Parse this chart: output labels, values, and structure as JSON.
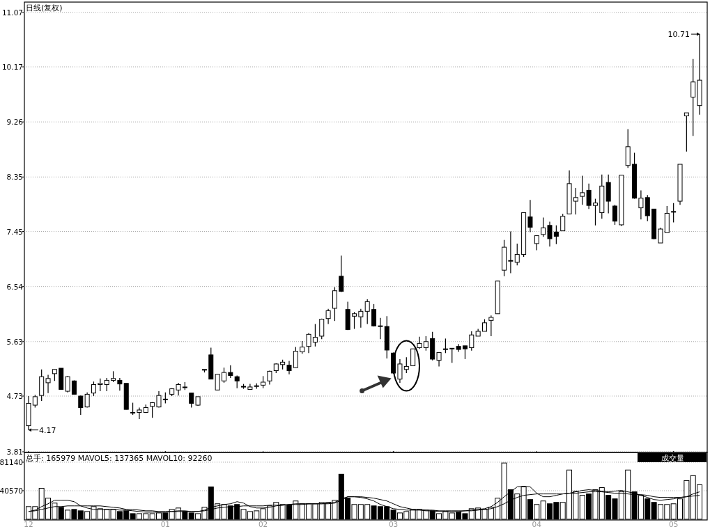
{
  "chart_data": [
    {
      "type": "candlestick",
      "title": "日线(复权)",
      "categories": [
        "12",
        null,
        null,
        null,
        null,
        null,
        null,
        null,
        null,
        null,
        null,
        null,
        null,
        null,
        null,
        null,
        null,
        null,
        null,
        null,
        null,
        "01",
        null,
        null,
        null,
        null,
        null,
        null,
        null,
        null,
        null,
        null,
        null,
        null,
        null,
        null,
        "02",
        null,
        null,
        null,
        null,
        null,
        null,
        null,
        null,
        null,
        null,
        null,
        null,
        null,
        null,
        null,
        null,
        null,
        null,
        null,
        "03",
        null,
        null,
        null,
        null,
        null,
        null,
        null,
        null,
        null,
        null,
        null,
        null,
        null,
        null,
        null,
        null,
        null,
        null,
        null,
        null,
        null,
        "04",
        null,
        null,
        null,
        null,
        null,
        null,
        null,
        null,
        null,
        null,
        null,
        null,
        null,
        null,
        null,
        null,
        null,
        null,
        null,
        null,
        "05",
        null,
        null,
        null,
        null
      ],
      "ohlc": [
        [
          4.24,
          4.73,
          4.17,
          4.61
        ],
        [
          4.58,
          4.75,
          4.54,
          4.72
        ],
        [
          4.74,
          5.17,
          4.65,
          5.05
        ],
        [
          4.95,
          5.08,
          4.78,
          5.02
        ],
        [
          5.1,
          5.17,
          4.98,
          5.17
        ],
        [
          5.19,
          5.19,
          4.84,
          4.84
        ],
        [
          4.81,
          5.06,
          4.79,
          5.05
        ],
        [
          4.98,
          4.99,
          4.76,
          4.76
        ],
        [
          4.73,
          4.74,
          4.42,
          4.54
        ],
        [
          4.55,
          4.79,
          4.54,
          4.76
        ],
        [
          4.78,
          4.97,
          4.73,
          4.92
        ],
        [
          4.92,
          5.02,
          4.81,
          4.94
        ],
        [
          4.92,
          5.03,
          4.81,
          4.99
        ],
        [
          4.99,
          5.14,
          4.96,
          5.02
        ],
        [
          4.99,
          5.03,
          4.82,
          4.93
        ],
        [
          4.94,
          4.94,
          4.51,
          4.51
        ],
        [
          4.46,
          4.62,
          4.42,
          4.46
        ],
        [
          4.46,
          4.54,
          4.35,
          4.5
        ],
        [
          4.46,
          4.59,
          4.45,
          4.54
        ],
        [
          4.56,
          4.63,
          4.37,
          4.62
        ],
        [
          4.55,
          4.81,
          4.54,
          4.74
        ],
        [
          4.68,
          4.79,
          4.61,
          4.68
        ],
        [
          4.76,
          4.86,
          4.73,
          4.85
        ],
        [
          4.83,
          4.95,
          4.74,
          4.92
        ],
        [
          4.88,
          4.96,
          4.83,
          4.88
        ],
        [
          4.78,
          4.78,
          4.54,
          4.61
        ],
        [
          4.58,
          4.72,
          4.57,
          4.72
        ],
        [
          5.17,
          5.17,
          5.12,
          5.17
        ],
        [
          5.41,
          5.53,
          5.01,
          5.01
        ],
        [
          4.83,
          5.09,
          4.83,
          5.09
        ],
        [
          4.98,
          5.2,
          4.95,
          5.12
        ],
        [
          5.12,
          5.24,
          5.03,
          5.07
        ],
        [
          5.05,
          5.07,
          4.86,
          4.98
        ],
        [
          4.89,
          4.93,
          4.85,
          4.89
        ],
        [
          4.84,
          4.93,
          4.84,
          4.88
        ],
        [
          4.89,
          4.94,
          4.85,
          4.9
        ],
        [
          4.91,
          5.06,
          4.86,
          4.96
        ],
        [
          4.98,
          5.15,
          4.92,
          5.14
        ],
        [
          5.15,
          5.27,
          5.11,
          5.26
        ],
        [
          5.25,
          5.33,
          5.17,
          5.29
        ],
        [
          5.24,
          5.31,
          5.09,
          5.15
        ],
        [
          5.2,
          5.54,
          5.2,
          5.47
        ],
        [
          5.46,
          5.64,
          5.43,
          5.54
        ],
        [
          5.55,
          5.77,
          5.44,
          5.75
        ],
        [
          5.62,
          5.92,
          5.55,
          5.7
        ],
        [
          5.72,
          6.01,
          5.67,
          6.0
        ],
        [
          6.01,
          6.17,
          5.92,
          6.14
        ],
        [
          6.18,
          6.53,
          5.97,
          6.47
        ],
        [
          6.71,
          7.05,
          6.45,
          6.46
        ],
        [
          6.16,
          6.29,
          5.82,
          5.83
        ],
        [
          6.05,
          6.12,
          5.84,
          6.09
        ],
        [
          6.04,
          6.17,
          5.86,
          6.13
        ],
        [
          6.13,
          6.33,
          5.92,
          6.29
        ],
        [
          6.16,
          6.25,
          5.88,
          5.89
        ],
        [
          5.89,
          6.02,
          5.67,
          5.89
        ],
        [
          5.88,
          6.05,
          5.35,
          5.49
        ],
        [
          5.44,
          5.45,
          5.1,
          5.11
        ],
        [
          5.01,
          5.34,
          4.95,
          5.26
        ],
        [
          5.17,
          5.37,
          5.11,
          5.22
        ],
        [
          5.23,
          5.51,
          5.23,
          5.51
        ],
        [
          5.53,
          5.71,
          5.51,
          5.6
        ],
        [
          5.53,
          5.72,
          5.48,
          5.63
        ],
        [
          5.68,
          5.79,
          5.32,
          5.34
        ],
        [
          5.32,
          5.45,
          5.22,
          5.45
        ],
        [
          5.51,
          5.68,
          5.44,
          5.51
        ],
        [
          5.51,
          5.52,
          5.28,
          5.52
        ],
        [
          5.55,
          5.59,
          5.46,
          5.5
        ],
        [
          5.56,
          5.56,
          5.34,
          5.51
        ],
        [
          5.53,
          5.8,
          5.48,
          5.74
        ],
        [
          5.72,
          5.84,
          5.72,
          5.8
        ],
        [
          5.8,
          6.0,
          5.8,
          5.94
        ],
        [
          5.98,
          6.06,
          5.72,
          6.03
        ],
        [
          6.09,
          6.63,
          6.09,
          6.63
        ],
        [
          6.81,
          7.31,
          6.71,
          7.19
        ],
        [
          6.97,
          7.45,
          6.76,
          6.97
        ],
        [
          6.94,
          7.25,
          6.89,
          7.07
        ],
        [
          7.07,
          7.76,
          7.03,
          7.76
        ],
        [
          7.69,
          7.97,
          7.44,
          7.52
        ],
        [
          7.25,
          7.38,
          7.14,
          7.38
        ],
        [
          7.4,
          7.68,
          7.36,
          7.51
        ],
        [
          7.55,
          7.61,
          7.2,
          7.33
        ],
        [
          7.44,
          7.55,
          7.24,
          7.37
        ],
        [
          7.46,
          7.74,
          7.46,
          7.7
        ],
        [
          7.74,
          8.46,
          7.74,
          8.24
        ],
        [
          7.95,
          8.17,
          7.73,
          8.01
        ],
        [
          8.03,
          8.37,
          7.89,
          8.09
        ],
        [
          8.13,
          8.24,
          7.82,
          7.88
        ],
        [
          7.88,
          7.99,
          7.55,
          7.92
        ],
        [
          7.76,
          8.39,
          7.66,
          8.2
        ],
        [
          8.26,
          8.39,
          7.75,
          7.95
        ],
        [
          7.87,
          7.89,
          7.56,
          7.62
        ],
        [
          7.56,
          8.38,
          7.54,
          8.38
        ],
        [
          8.54,
          9.14,
          8.5,
          8.85
        ],
        [
          8.56,
          8.75,
          7.99,
          8.0
        ],
        [
          7.84,
          8.13,
          7.65,
          8.0
        ],
        [
          8.01,
          8.05,
          7.62,
          7.71
        ],
        [
          7.82,
          7.82,
          7.32,
          7.33
        ],
        [
          7.26,
          7.51,
          7.26,
          7.49
        ],
        [
          7.43,
          7.87,
          7.43,
          7.75
        ],
        [
          7.78,
          7.92,
          7.6,
          7.78
        ],
        [
          7.95,
          8.56,
          7.89,
          8.56
        ],
        [
          9.36,
          9.41,
          8.77,
          9.41
        ],
        [
          9.67,
          10.3,
          9.03,
          9.92
        ],
        [
          9.53,
          10.71,
          9.38,
          9.95
        ]
      ],
      "ylim": [
        3.81,
        11.24
      ],
      "yticks": [
        3.81,
        4.73,
        5.63,
        6.54,
        7.45,
        8.35,
        9.26,
        10.17,
        11.07
      ],
      "grid": "y",
      "tick_labels": "y",
      "annotations": [
        "4.17",
        "10.71"
      ]
    },
    {
      "type": "bar",
      "title": "总手: 165979 MAVOL5: 137365 MAVOL10: 92260",
      "subtitle": "成交量",
      "categories": [
        "12",
        null,
        null,
        null,
        null,
        null,
        null,
        null,
        null,
        null,
        null,
        null,
        null,
        null,
        null,
        null,
        null,
        null,
        null,
        null,
        null,
        "01",
        null,
        null,
        null,
        null,
        null,
        null,
        null,
        null,
        null,
        null,
        null,
        null,
        null,
        null,
        "02",
        null,
        null,
        null,
        null,
        null,
        null,
        null,
        null,
        null,
        null,
        null,
        null,
        null,
        null,
        null,
        null,
        null,
        null,
        null,
        "03",
        null,
        null,
        null,
        null,
        null,
        null,
        null,
        null,
        null,
        null,
        null,
        null,
        null,
        null,
        null,
        null,
        null,
        null,
        null,
        null,
        null,
        "04",
        null,
        null,
        null,
        null,
        null,
        null,
        null,
        null,
        null,
        null,
        null,
        null,
        null,
        null,
        null,
        null,
        null,
        null,
        null,
        null,
        "05",
        null,
        null,
        null,
        null
      ],
      "series": [
        {
          "type": "bar",
          "values": [
            18000,
            18000,
            44000,
            30000,
            23000,
            17000,
            13000,
            14000,
            12000,
            11000,
            18000,
            15000,
            14000,
            14000,
            11000,
            12000,
            8000,
            8000,
            8000,
            8000,
            9000,
            9000,
            14000,
            16000,
            11000,
            9000,
            8000,
            17000,
            46000,
            22000,
            21000,
            19000,
            21000,
            14000,
            11000,
            12000,
            15000,
            19000,
            24000,
            21000,
            20000,
            26000,
            22000,
            22000,
            22000,
            24000,
            24000,
            27000,
            64000,
            30000,
            21000,
            21000,
            21000,
            19000,
            18000,
            18000,
            13000,
            9000,
            11000,
            14000,
            14000,
            13000,
            12000,
            8000,
            11000,
            9000,
            10000,
            8000,
            15000,
            16000,
            14000,
            17000,
            30000,
            80000,
            42000,
            36000,
            46000,
            28000,
            21000,
            26000,
            22000,
            24000,
            24000,
            70000,
            40000,
            34000,
            36000,
            42000,
            45000,
            34000,
            29000,
            39000,
            70000,
            39000,
            34000,
            29000,
            24000,
            21000,
            21000,
            22000,
            29000,
            55000,
            62000,
            49000
          ],
          "colors": [
            "#ffffff",
            "#ffffff",
            "#ffffff",
            "#ffffff",
            "#ffffff",
            "#000000",
            "#ffffff",
            "#000000",
            "#000000",
            "#ffffff",
            "#ffffff",
            "#ffffff",
            "#ffffff",
            "#ffffff",
            "#000000",
            "#000000",
            "#000000",
            "#ffffff",
            "#ffffff",
            "#ffffff",
            "#ffffff",
            "#000000",
            "#ffffff",
            "#ffffff",
            "#000000",
            "#000000",
            "#ffffff",
            "#ffffff",
            "#000000",
            "#ffffff",
            "#ffffff",
            "#000000",
            "#000000",
            "#ffffff",
            "#ffffff",
            "#ffffff",
            "#ffffff",
            "#ffffff",
            "#ffffff",
            "#ffffff",
            "#000000",
            "#ffffff",
            "#ffffff",
            "#ffffff",
            "#ffffff",
            "#ffffff",
            "#ffffff",
            "#ffffff",
            "#000000",
            "#000000",
            "#ffffff",
            "#ffffff",
            "#ffffff",
            "#000000",
            "#000000",
            "#000000",
            "#000000",
            "#ffffff",
            "#ffffff",
            "#ffffff",
            "#ffffff",
            "#ffffff",
            "#000000",
            "#ffffff",
            "#ffffff",
            "#ffffff",
            "#000000",
            "#000000",
            "#ffffff",
            "#ffffff",
            "#ffffff",
            "#ffffff",
            "#ffffff",
            "#ffffff",
            "#000000",
            "#ffffff",
            "#ffffff",
            "#000000",
            "#ffffff",
            "#ffffff",
            "#000000",
            "#000000",
            "#ffffff",
            "#ffffff",
            "#ffffff",
            "#ffffff",
            "#000000",
            "#ffffff",
            "#ffffff",
            "#000000",
            "#000000",
            "#ffffff",
            "#ffffff",
            "#000000",
            "#ffffff",
            "#000000",
            "#000000",
            "#ffffff",
            "#ffffff",
            "#ffffff",
            "#ffffff",
            "#ffffff",
            "#ffffff",
            "#ffffff"
          ]
        },
        {
          "type": "line",
          "color": "#000000",
          "values": [
            11000,
            13000,
            18000,
            22000,
            27000,
            27000,
            27000,
            25000,
            19000,
            16000,
            14000,
            14000,
            14000,
            14000,
            13000,
            13000,
            12000,
            11000,
            10000,
            10000,
            10000,
            10000,
            11000,
            12000,
            12000,
            11000,
            11000,
            13000,
            17000,
            19000,
            21000,
            22000,
            25000,
            23000,
            18000,
            16000,
            16000,
            17000,
            19000,
            20000,
            21000,
            22000,
            22000,
            22000,
            22000,
            22000,
            23000,
            24000,
            29000,
            32000,
            32000,
            31000,
            29000,
            26000,
            21000,
            18000,
            15000,
            14000,
            13000,
            13000,
            13000,
            12000,
            12000,
            11000,
            11000,
            11000,
            11000,
            12000,
            13000,
            14000,
            15000,
            18000,
            24000,
            32000,
            39000,
            46000,
            47000,
            46000,
            37000,
            32000,
            32000,
            34000,
            36000,
            37000,
            39000,
            41000,
            42000,
            41000,
            40000,
            39000,
            40000,
            41000,
            39000,
            37000,
            34000,
            31000,
            28000,
            27000,
            28000,
            29000,
            31000,
            32000,
            36000,
            39000
          ]
        },
        {
          "type": "line",
          "color": "#000000",
          "values": [
            11000,
            12000,
            14000,
            16000,
            18000,
            18000,
            19000,
            19000,
            19000,
            19000,
            19000,
            19000,
            18000,
            17000,
            16000,
            14000,
            14000,
            13000,
            12000,
            12000,
            11000,
            11000,
            11000,
            11000,
            11000,
            11000,
            11000,
            12000,
            14000,
            16000,
            17000,
            18000,
            18000,
            19000,
            19000,
            19000,
            19000,
            20000,
            20000,
            20000,
            21000,
            21000,
            21000,
            22000,
            22000,
            22000,
            22000,
            23000,
            27000,
            32000,
            32000,
            32000,
            31000,
            30000,
            28000,
            26000,
            22000,
            18000,
            16000,
            14000,
            14000,
            13000,
            13000,
            12000,
            12000,
            12000,
            12000,
            12000,
            12000,
            13000,
            14000,
            15000,
            18000,
            22000,
            27000,
            31000,
            34000,
            35000,
            36000,
            36000,
            36000,
            36000,
            36000,
            37000,
            37000,
            38000,
            39000,
            39000,
            39000,
            38000,
            37000,
            37000,
            36000,
            35000,
            35000,
            34000,
            32000,
            31000,
            31000,
            31000,
            31000,
            32000,
            33000,
            34000
          ]
        }
      ],
      "ylim": [
        0,
        94000
      ],
      "yticks": [
        40570,
        81140
      ],
      "grid": "y"
    }
  ]
}
